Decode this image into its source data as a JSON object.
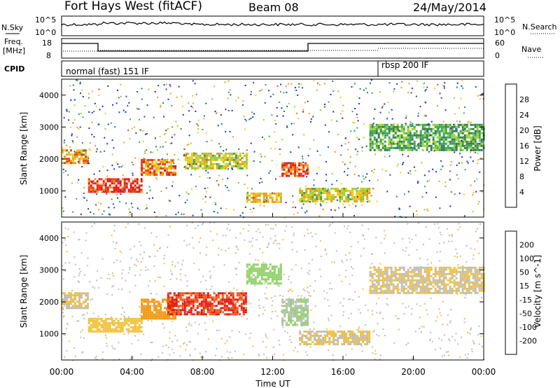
{
  "header": {
    "station": "Fort Hays West (fitACF)",
    "beam": "Beam 08",
    "date": "24/May/2014"
  },
  "top_panels": {
    "nsky_label": "N.Sky",
    "nsearch_label": "N.Search",
    "freq_label_1": "Freq.",
    "freq_label_2": "[MHz]",
    "nave_label": "Nave",
    "cpid_label": "CPID",
    "noise_ticks": [
      "10^5",
      "10^0"
    ],
    "freq_ticks": [
      "18",
      "8"
    ],
    "nave_ticks": [
      "60",
      "0"
    ],
    "cpid_segments": [
      "normal (fast) 151 IF",
      "rbsp 200 IF"
    ]
  },
  "colors": {
    "power_scale": [
      "#1430d0",
      "#1f4bb0",
      "#2e7d55",
      "#3aa55a",
      "#9ad22e",
      "#f0c81e",
      "#f09a14",
      "#e8421e",
      "#e01818"
    ],
    "velocity_scale": [
      "#e01818",
      "#f05a14",
      "#f29a14",
      "#f2c23c",
      "#bdbdbd",
      "#8fd36a",
      "#39a33c",
      "#2f5fb0",
      "#1f2fa8"
    ],
    "ground_scatter": "#bebebe"
  },
  "chart_data": [
    {
      "type": "heatmap",
      "title": "Power",
      "ylabel": "Slant Range [km]",
      "colorbar_label": "Power [dB]",
      "colorbar_ticks": [
        "28",
        "24",
        "20",
        "16",
        "12",
        "8",
        "4"
      ],
      "x_ticks": [
        "00:00",
        "04:00",
        "08:00",
        "12:00",
        "16:00",
        "20:00",
        "00:00"
      ],
      "y_ticks": [
        "1000",
        "2000",
        "3000",
        "4000"
      ],
      "xlim_hours": [
        0,
        24
      ],
      "ylim_km": [
        180,
        4500
      ],
      "bands": [
        {
          "x": [
            0,
            1.5
          ],
          "y": [
            1900,
            2300
          ],
          "value": 22
        },
        {
          "x": [
            1.5,
            4.5
          ],
          "y": [
            1000,
            1400
          ],
          "value": 28
        },
        {
          "x": [
            4.5,
            6.5
          ],
          "y": [
            1500,
            2000
          ],
          "value": 24
        },
        {
          "x": [
            7.0,
            10.5
          ],
          "y": [
            1700,
            2200
          ],
          "value": 18
        },
        {
          "x": [
            10.5,
            12.5
          ],
          "y": [
            650,
            950
          ],
          "value": 20
        },
        {
          "x": [
            12.5,
            14.0
          ],
          "y": [
            1500,
            1900
          ],
          "value": 26
        },
        {
          "x": [
            13.5,
            17.5
          ],
          "y": [
            700,
            1100
          ],
          "value": 18
        },
        {
          "x": [
            17.5,
            24.0
          ],
          "y": [
            2300,
            3100
          ],
          "value": 12
        }
      ]
    },
    {
      "type": "heatmap",
      "title": "Velocity",
      "ylabel": "Slant Range [km]",
      "xlabel": "Time UT",
      "colorbar_label": "Velocity [m s^-1]",
      "colorbar_ticks": [
        "200",
        "100",
        "50",
        "15",
        "-15",
        "-50",
        "-100",
        "-200"
      ],
      "x_ticks": [
        "00:00",
        "04:00",
        "08:00",
        "12:00",
        "16:00",
        "20:00",
        "00:00"
      ],
      "y_ticks": [
        "1000",
        "2000",
        "3000",
        "4000"
      ],
      "xlim_hours": [
        0,
        24
      ],
      "ylim_km": [
        180,
        4500
      ],
      "bands": [
        {
          "x": [
            0,
            1.5
          ],
          "y": [
            1800,
            2300
          ],
          "value": 0
        },
        {
          "x": [
            1.5,
            4.5
          ],
          "y": [
            1100,
            1500
          ],
          "value": -40
        },
        {
          "x": [
            4.5,
            6.5
          ],
          "y": [
            1500,
            2100
          ],
          "value": -60
        },
        {
          "x": [
            6.0,
            10.5
          ],
          "y": [
            1600,
            2300
          ],
          "value": -150
        },
        {
          "x": [
            10.5,
            12.5
          ],
          "y": [
            2600,
            3200
          ],
          "value": 60
        },
        {
          "x": [
            12.5,
            14.0
          ],
          "y": [
            1300,
            2100
          ],
          "value": 50
        },
        {
          "x": [
            13.5,
            17.5
          ],
          "y": [
            700,
            1100
          ],
          "value": 0
        },
        {
          "x": [
            17.5,
            24.0
          ],
          "y": [
            2300,
            3100
          ],
          "value": 0
        }
      ]
    }
  ]
}
